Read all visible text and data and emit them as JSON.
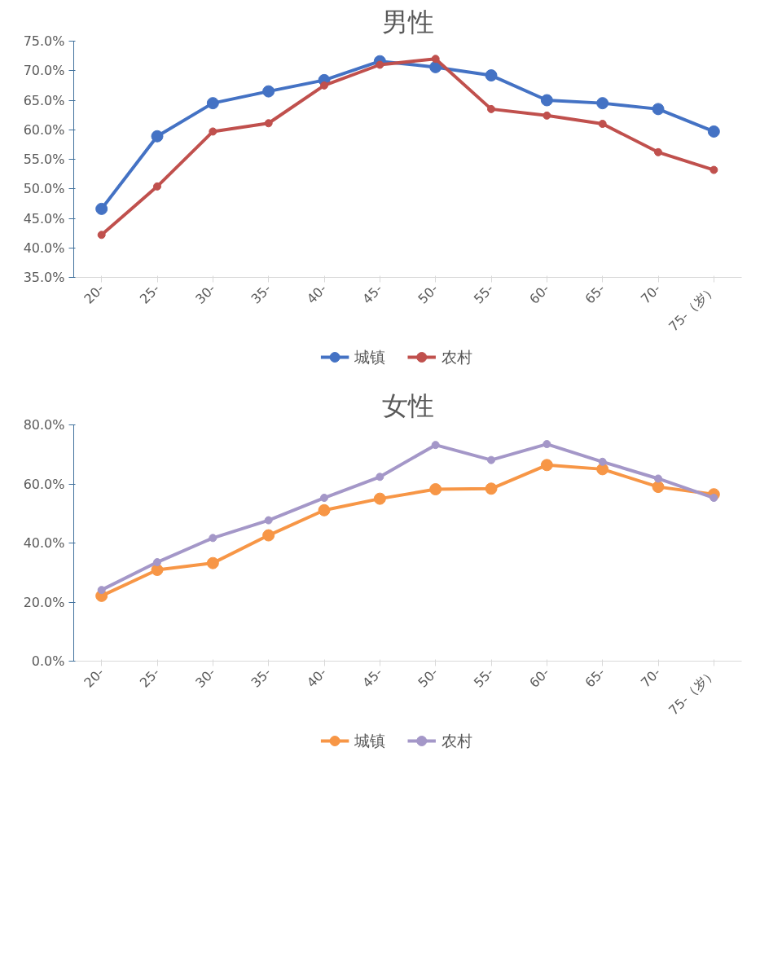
{
  "chart_data": [
    {
      "type": "line",
      "title": "男性",
      "categories": [
        "20-",
        "25-",
        "30-",
        "35-",
        "40-",
        "45-",
        "50-",
        "55-",
        "60-",
        "65-",
        "70-",
        "75-（岁）"
      ],
      "series": [
        {
          "name": "城镇",
          "color": "#4472c4",
          "values": [
            46.6,
            58.9,
            64.5,
            66.5,
            68.4,
            71.6,
            70.6,
            69.2,
            65.0,
            64.5,
            63.5,
            59.7
          ]
        },
        {
          "name": "农村",
          "color": "#c0504d",
          "values": [
            42.2,
            50.4,
            59.7,
            61.1,
            67.5,
            71.0,
            72.0,
            63.5,
            62.4,
            61.0,
            56.2,
            53.2
          ]
        }
      ],
      "ylim": [
        35,
        75
      ],
      "yticks": [
        {
          "value": 35,
          "label": "35.0%"
        },
        {
          "value": 40,
          "label": "40.0%"
        },
        {
          "value": 45,
          "label": "45.0%"
        },
        {
          "value": 50,
          "label": "50.0%"
        },
        {
          "value": 55,
          "label": "55.0%"
        },
        {
          "value": 60,
          "label": "60.0%"
        },
        {
          "value": 65,
          "label": "65.0%"
        },
        {
          "value": 70,
          "label": "70.0%"
        },
        {
          "value": 75,
          "label": "75.0%"
        }
      ],
      "grid": false,
      "legend": "bottom",
      "marker": "circle",
      "line_style": "solid"
    },
    {
      "type": "line",
      "title": "女性",
      "categories": [
        "20-",
        "25-",
        "30-",
        "35-",
        "40-",
        "45-",
        "50-",
        "55-",
        "60-",
        "65-",
        "70-",
        "75-（岁）"
      ],
      "series": [
        {
          "name": "城镇",
          "color": "#f79646",
          "values": [
            22.1,
            30.9,
            33.2,
            42.6,
            51.1,
            55.0,
            58.2,
            58.4,
            66.4,
            65.0,
            59.0,
            56.5
          ]
        },
        {
          "name": "农村",
          "color": "#a497c8",
          "values": [
            24.1,
            33.5,
            41.7,
            47.7,
            55.3,
            62.4,
            73.2,
            68.1,
            73.5,
            67.5,
            61.8,
            55.3
          ]
        }
      ],
      "ylim": [
        0,
        80
      ],
      "yticks": [
        {
          "value": 0,
          "label": "0.0%"
        },
        {
          "value": 20,
          "label": "20.0%"
        },
        {
          "value": 40,
          "label": "40.0%"
        },
        {
          "value": 60,
          "label": "60.0%"
        },
        {
          "value": 80,
          "label": "80.0%"
        }
      ],
      "grid": false,
      "legend": "bottom",
      "marker": "circle",
      "line_style": "solid"
    }
  ]
}
